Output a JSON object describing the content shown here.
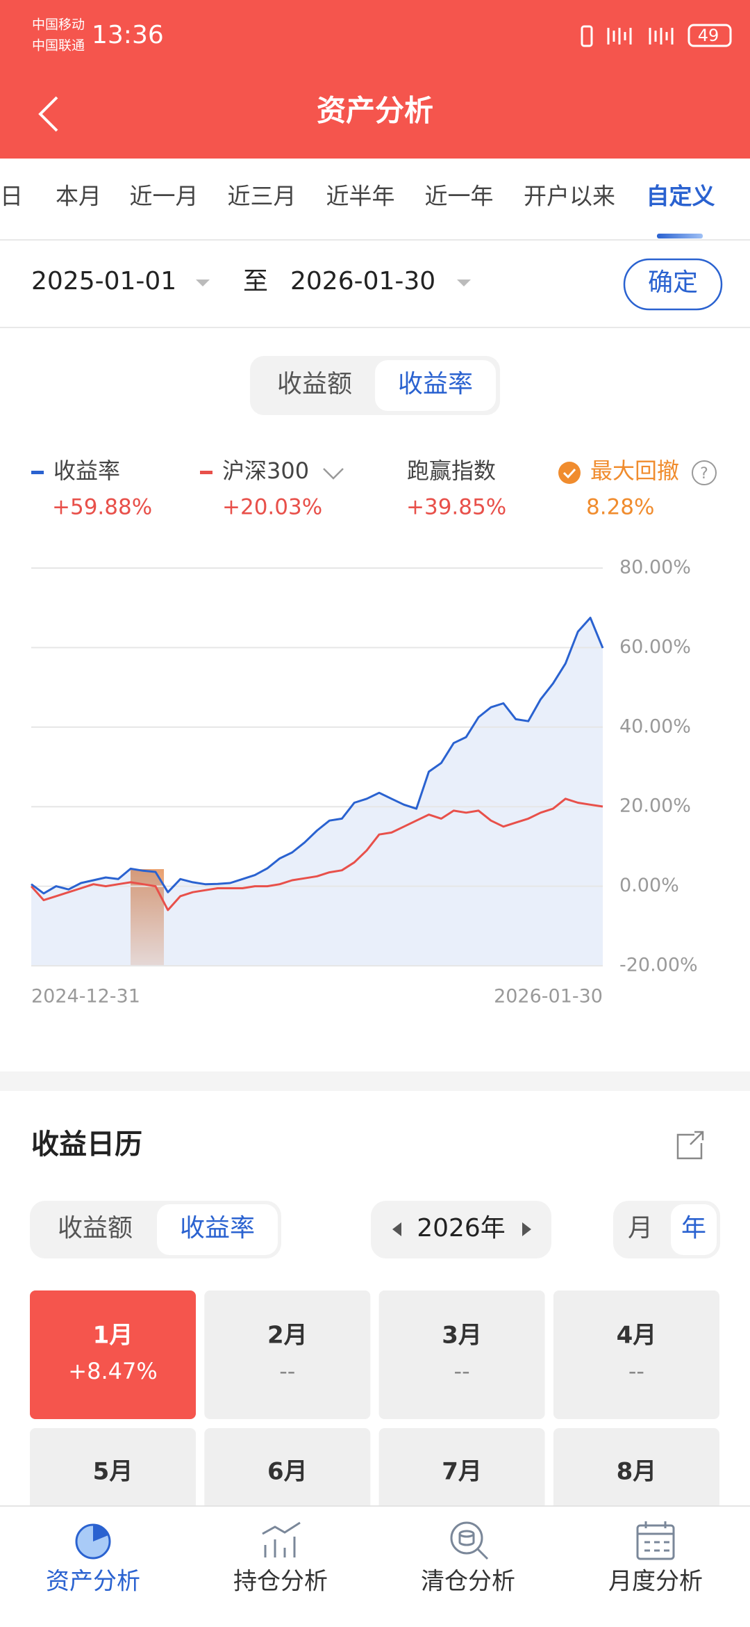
{
  "status_bar": {
    "carrier_1": "中国移动",
    "carrier_2": "中国联通",
    "time": "13:36",
    "battery": "49"
  },
  "header": {
    "title": "资产分析"
  },
  "tabs": {
    "items": [
      "当日",
      "本月",
      "近一月",
      "近三月",
      "近半年",
      "近一年",
      "开户以来",
      "自定义"
    ],
    "selected": 7
  },
  "date_range": {
    "start": "2025-01-01",
    "separator": "至",
    "end": "2026-01-30",
    "button": "确定"
  },
  "chart_toggle": {
    "options": [
      "收益额",
      "收益率"
    ],
    "selected": 1
  },
  "summary": [
    {
      "value": "+59.88%"
    },
    {
      "value": "+20.03%"
    },
    {
      "label": "跑赢指数",
      "value": "+39.85%"
    },
    {
      "label": "最大回撤",
      "value": "8.28%"
    }
  ],
  "chart_data": {
    "type": "line",
    "categories": [
      "2024-12-31",
      null,
      null,
      null,
      null,
      null,
      null,
      null,
      null,
      null,
      null,
      null,
      null,
      null,
      null,
      null,
      null,
      null,
      null,
      null,
      null,
      null,
      null,
      null,
      null,
      null,
      null,
      null,
      null,
      null,
      null,
      null,
      null,
      null,
      null,
      null,
      null,
      null,
      null,
      null,
      null,
      null,
      null,
      null,
      null,
      null,
      "2026-01-30"
    ],
    "series": [
      {
        "name": "收益率",
        "color": "#2a62d0",
        "values": [
          0.5,
          -1.8,
          0,
          -0.8,
          0.8,
          1.5,
          2.2,
          1.8,
          4.4,
          3.9,
          3.6,
          -1.5,
          1.8,
          1,
          0.5,
          0.6,
          0.8,
          1.8,
          2.8,
          4.5,
          7,
          8.5,
          11,
          14,
          16.5,
          17,
          21,
          22,
          23.5,
          22,
          20.5,
          19.5,
          28.8,
          31,
          36,
          37.5,
          42.5,
          45,
          46,
          42,
          41.5,
          47,
          51,
          56,
          64,
          67.5,
          59.88
        ]
      },
      {
        "name": "沪深300",
        "color": "#e8504a",
        "values": [
          0,
          -3.5,
          -2.5,
          -1.5,
          -0.5,
          0.5,
          0,
          0.5,
          1,
          0.5,
          0,
          -6,
          -2.5,
          -1.5,
          -1,
          -0.5,
          -0.5,
          -0.5,
          0,
          0,
          0.5,
          1.5,
          2,
          2.5,
          3.5,
          4,
          6,
          9,
          13,
          13.5,
          15,
          16.5,
          18,
          17,
          19,
          18.5,
          19,
          16.5,
          15,
          16,
          17,
          18.5,
          19.5,
          22,
          21,
          20.5,
          20.03
        ]
      }
    ],
    "ylim": [
      -20,
      80
    ],
    "yticks": [
      {
        "value": 80,
        "label": "80.00%"
      },
      {
        "value": 60,
        "label": "60.00%"
      },
      {
        "value": 40,
        "label": "40.00%"
      },
      {
        "value": 20,
        "label": "20.00%"
      },
      {
        "value": 0,
        "label": "0.00%"
      },
      {
        "value": -20,
        "label": "-20.00%"
      }
    ],
    "grid": true
  },
  "calendar": {
    "title": "收益日历",
    "toggle": [
      "收益额",
      "收益率"
    ],
    "year": "2026年",
    "period": [
      "月",
      "年"
    ],
    "months": [
      {
        "name": "1月",
        "value": "+8.47%"
      },
      {
        "name": "2月",
        "value": "--"
      },
      {
        "name": "3月",
        "value": "--"
      },
      {
        "name": "4月",
        "value": "--"
      },
      {
        "name": "5月"
      },
      {
        "name": "6月"
      },
      {
        "name": "7月"
      },
      {
        "name": "8月"
      }
    ]
  },
  "nav": [
    "资产分析",
    "持仓分析",
    "清仓分析",
    "月度分析"
  ]
}
